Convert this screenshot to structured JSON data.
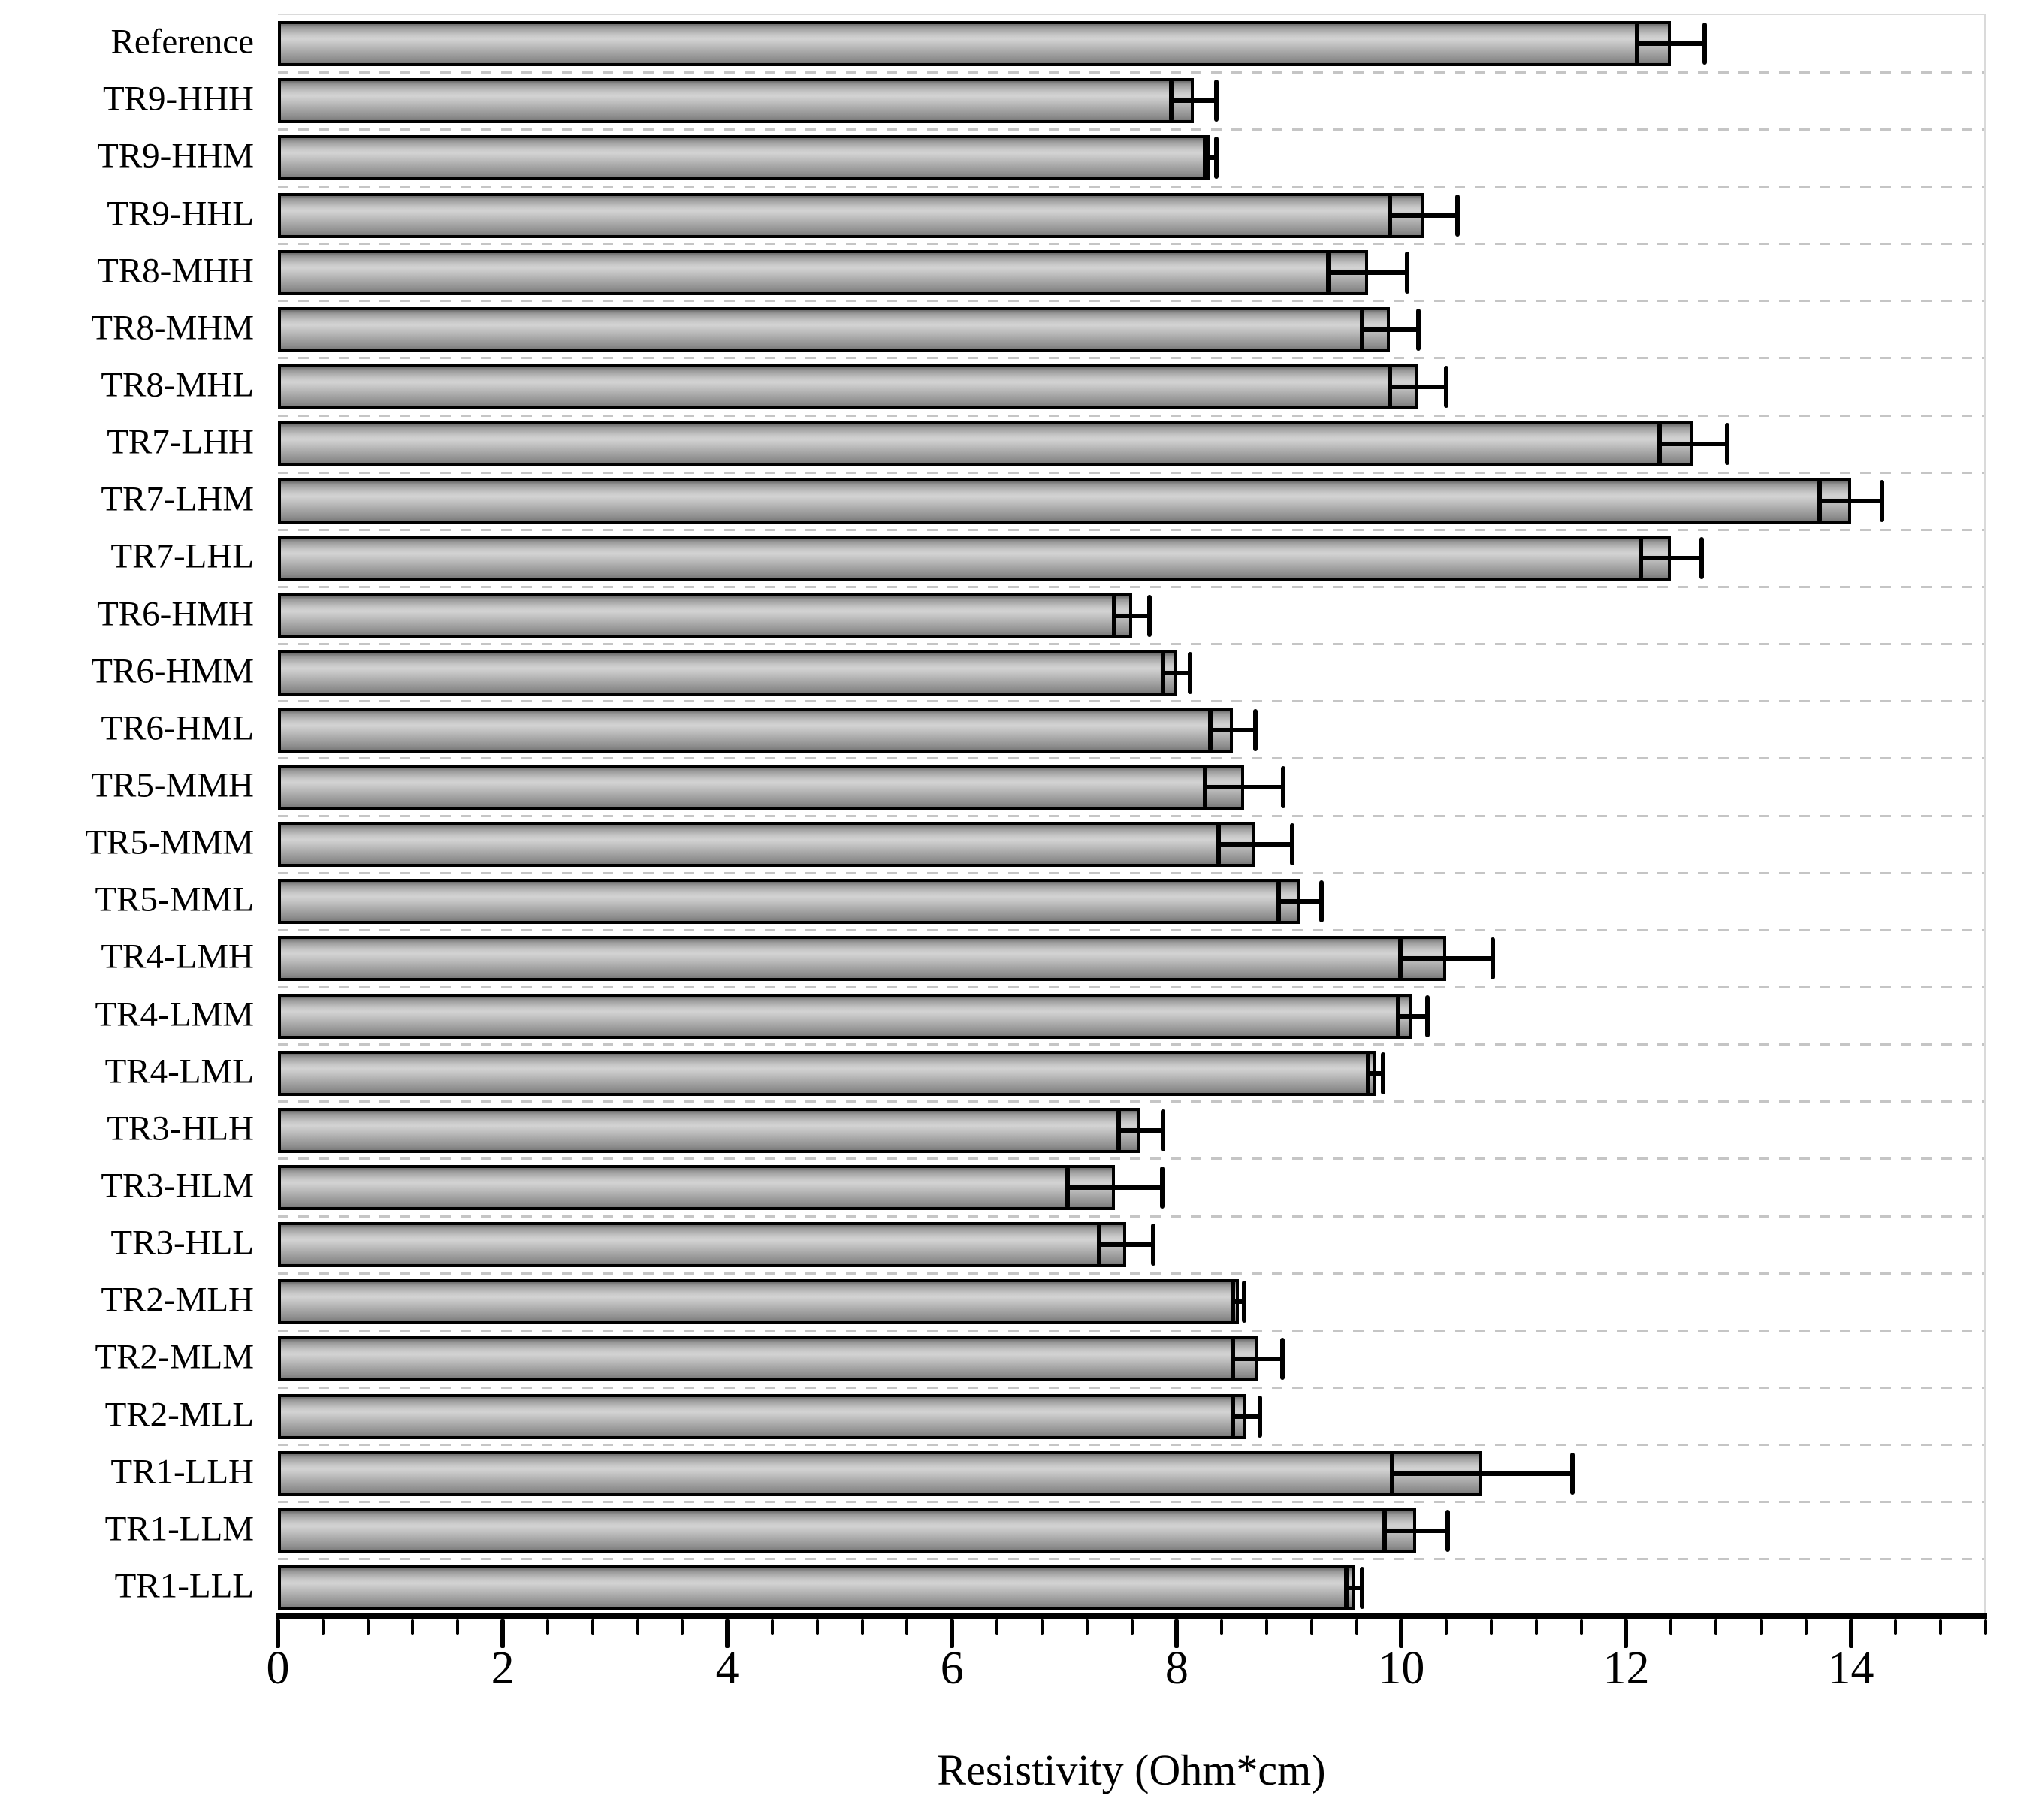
{
  "chart_data": {
    "type": "bar",
    "orientation": "horizontal",
    "title": "",
    "xlabel": "Resistivity (Ohm*cm)",
    "ylabel": "",
    "xlim": [
      0,
      15.2
    ],
    "x_major_ticks": [
      0,
      2,
      4,
      6,
      8,
      10,
      12,
      14
    ],
    "x_major_step": 2,
    "x_minor_step": 0.4,
    "grid": "dashed horizontal lines between categories",
    "legend": "none",
    "bar_fill": "gray gradient",
    "bar_border_color": "#000000",
    "error_bar_color": "#000000",
    "gridline_color": "#c5c5c5",
    "categories": [
      "Reference",
      "TR9-HHH",
      "TR9-HHM",
      "TR9-HHL",
      "TR8-MHH",
      "TR8-MHM",
      "TR8-MHL",
      "TR7-LHH",
      "TR7-LHM",
      "TR7-LHL",
      "TR6-HMH",
      "TR6-HMM",
      "TR6-HML",
      "TR5-MMH",
      "TR5-MMM",
      "TR5-MML",
      "TR4-LMH",
      "TR4-LMM",
      "TR4-LML",
      "TR3-HLH",
      "TR3-HLM",
      "TR3-HLL",
      "TR2-MLH",
      "TR2-MLM",
      "TR2-MLL",
      "TR1-LLH",
      "TR1-LLM",
      "TR1-LLL"
    ],
    "values": [
      12.4,
      8.15,
      8.3,
      10.2,
      9.7,
      9.9,
      10.15,
      12.6,
      14.0,
      12.4,
      7.6,
      8.0,
      8.5,
      8.6,
      8.7,
      9.1,
      10.4,
      10.1,
      9.77,
      7.68,
      7.45,
      7.55,
      8.55,
      8.72,
      8.62,
      10.72,
      10.13,
      9.58
    ],
    "errors": [
      0.3,
      0.2,
      0.05,
      0.3,
      0.35,
      0.25,
      0.25,
      0.3,
      0.28,
      0.27,
      0.16,
      0.12,
      0.2,
      0.35,
      0.33,
      0.19,
      0.41,
      0.13,
      0.07,
      0.2,
      0.42,
      0.24,
      0.05,
      0.22,
      0.12,
      0.8,
      0.28,
      0.07
    ]
  }
}
